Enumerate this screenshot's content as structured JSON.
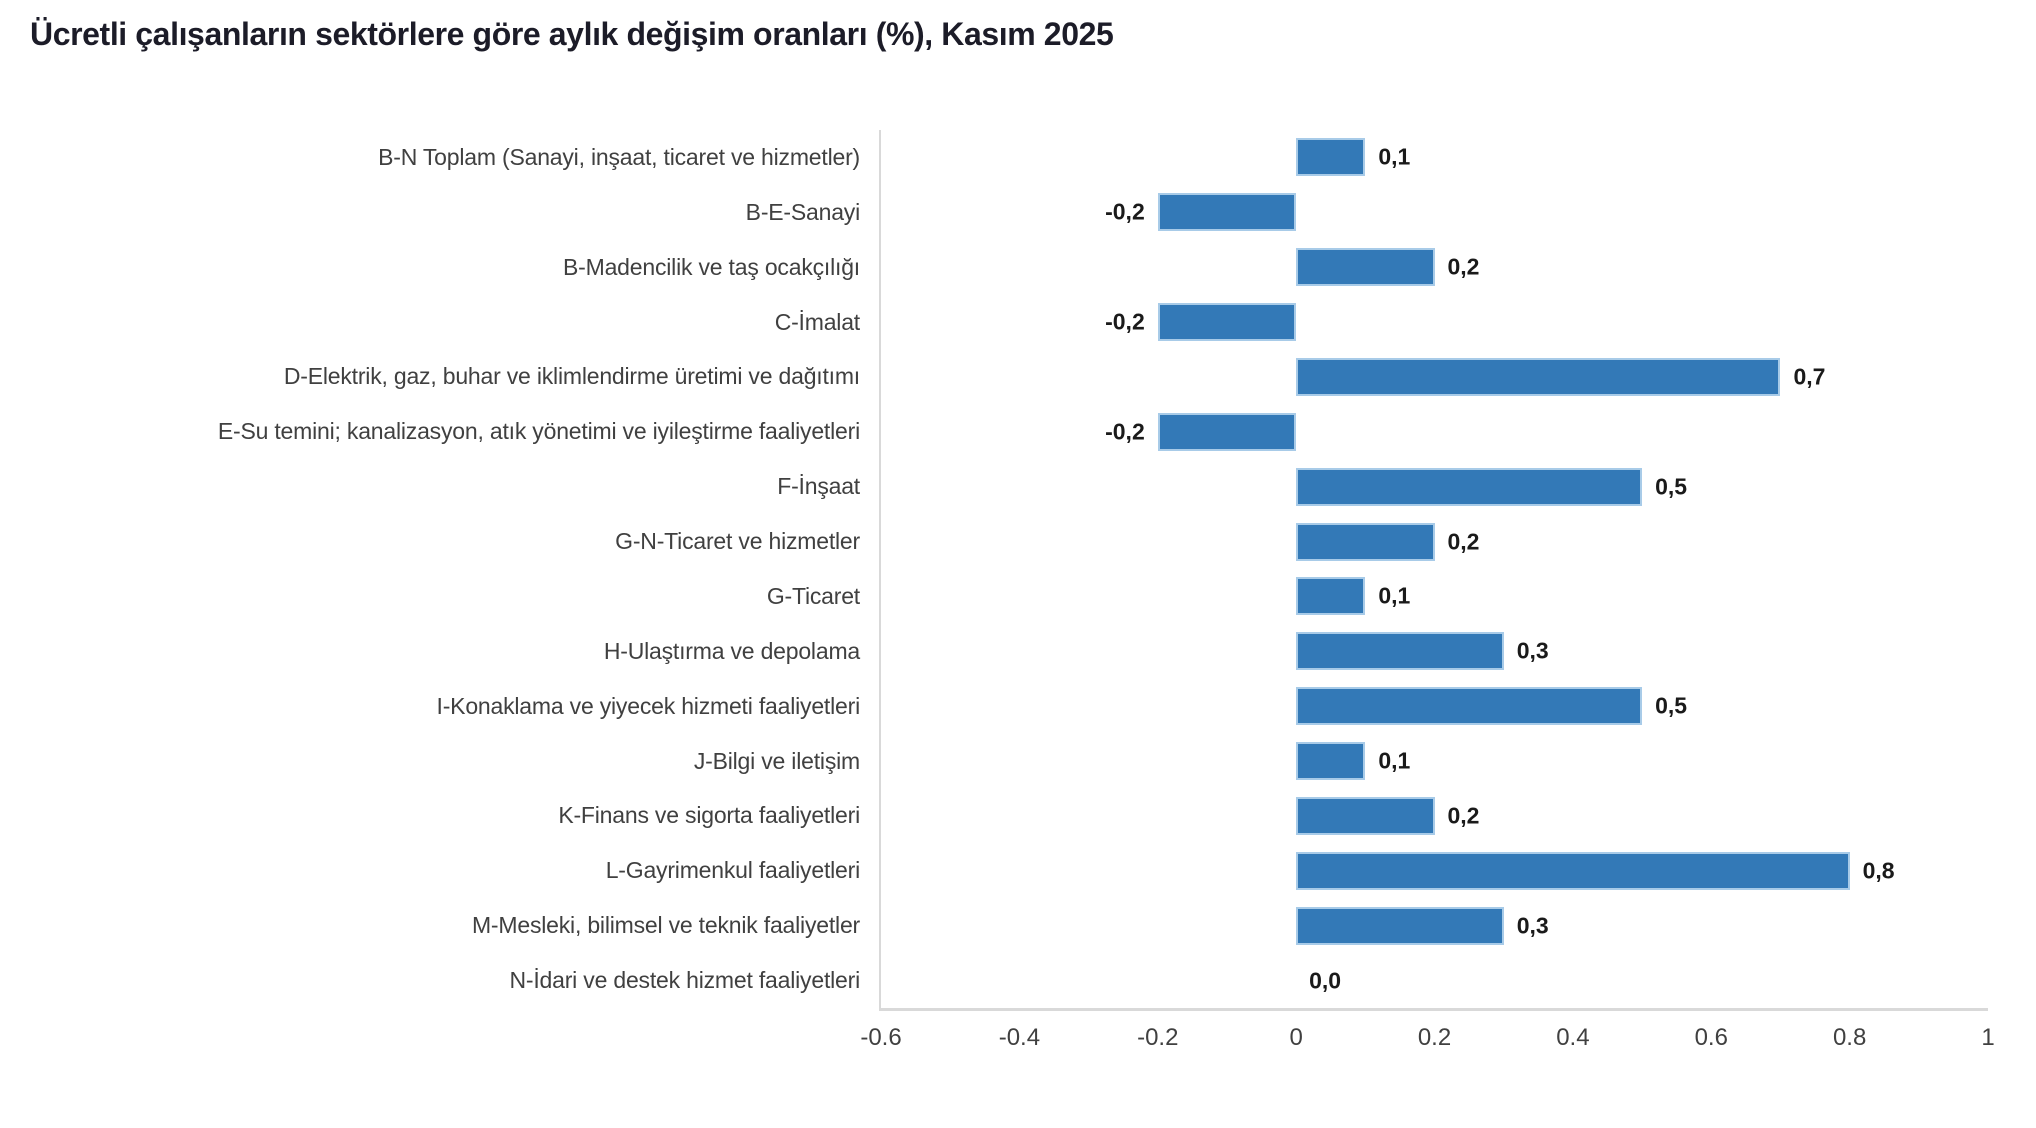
{
  "title": "Ücretli çalışanların sektörlere göre aylık değişim oranları (%), Kasım 2025",
  "chart_data": {
    "type": "bar",
    "orientation": "horizontal",
    "title": "Ücretli çalışanların sektörlere göre aylık değişim oranları (%), Kasım 2025",
    "categories": [
      "B-N Toplam (Sanayi, inşaat, ticaret ve hizmetler)",
      "B-E-Sanayi",
      "B-Madencilik ve taş ocakçılığı",
      "C-İmalat",
      "D-Elektrik, gaz, buhar ve iklimlendirme üretimi ve dağıtımı",
      "E-Su temini; kanalizasyon, atık yönetimi ve iyileştirme faaliyetleri",
      "F-İnşaat",
      "G-N-Ticaret ve hizmetler",
      "G-Ticaret",
      "H-Ulaştırma ve depolama",
      "I-Konaklama ve yiyecek hizmeti faaliyetleri",
      "J-Bilgi ve iletişim",
      "K-Finans ve sigorta faaliyetleri",
      "L-Gayrimenkul faaliyetleri",
      "M-Mesleki, bilimsel ve teknik faaliyetler",
      "N-İdari ve destek hizmet faaliyetleri"
    ],
    "values": [
      0.1,
      -0.2,
      0.2,
      -0.2,
      0.7,
      -0.2,
      0.5,
      0.2,
      0.1,
      0.3,
      0.5,
      0.1,
      0.2,
      0.8,
      0.3,
      0.0
    ],
    "value_labels": [
      "0,1",
      "-0,2",
      "0,2",
      "-0,2",
      "0,7",
      "-0,2",
      "0,5",
      "0,2",
      "0,1",
      "0,3",
      "0,5",
      "0,1",
      "0,2",
      "0,8",
      "0,3",
      "0,0"
    ],
    "xlabel": "",
    "ylabel": "",
    "xlim": [
      -0.6,
      1
    ],
    "xticks": [
      "-0.6",
      "-0.4",
      "-0.2",
      "0",
      "0.2",
      "0.4",
      "0.6",
      "0.8",
      "1"
    ],
    "xtick_values": [
      -0.6,
      -0.4,
      -0.2,
      0,
      0.2,
      0.4,
      0.6,
      0.8,
      1
    ],
    "grid": false,
    "legend": "none",
    "colors": {
      "bar_fill": "#3379b7",
      "bar_border": "#a8cbe8",
      "axis_line": "#d9d9d9",
      "category_text": "#404040",
      "tick_text": "#404040",
      "value_text": "#1a1a1a",
      "title_text": "#1c1c28"
    }
  }
}
